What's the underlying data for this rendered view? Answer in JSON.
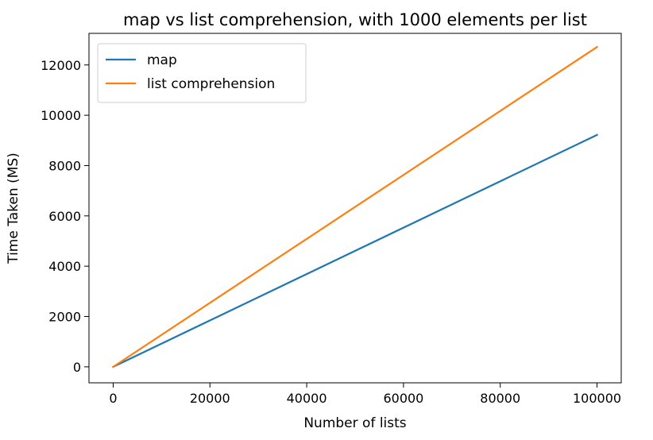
{
  "chart_data": {
    "type": "line",
    "title": "map vs list comprehension, with 1000 elements per list",
    "xlabel": "Number of lists",
    "ylabel": "Time Taken (MS)",
    "xlim": [
      -5000,
      105000
    ],
    "ylim": [
      -636,
      13256
    ],
    "xticks": [
      0,
      20000,
      40000,
      60000,
      80000,
      100000
    ],
    "yticks": [
      0,
      2000,
      4000,
      6000,
      8000,
      10000,
      12000
    ],
    "grid": false,
    "legend": "upper left",
    "series": [
      {
        "name": "map",
        "color": "#1f77b4",
        "x": [
          0,
          100000
        ],
        "y": [
          0,
          9220
        ]
      },
      {
        "name": "list comprehension",
        "color": "#ff7f0e",
        "x": [
          0,
          100000
        ],
        "y": [
          0,
          12715
        ]
      }
    ]
  }
}
